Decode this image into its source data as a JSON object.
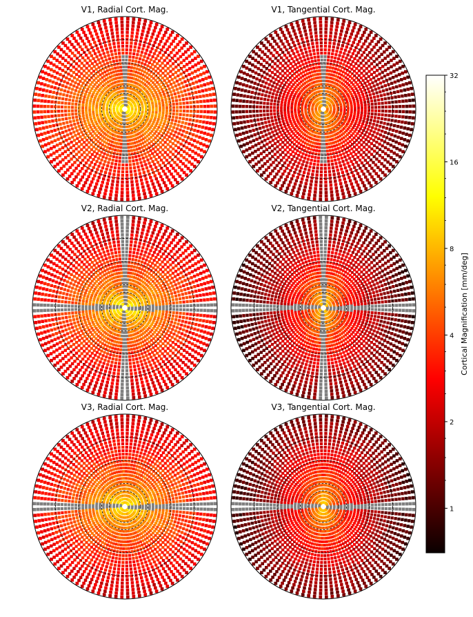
{
  "figure": {
    "panel_titles": [
      "V1, Radial Cort. Mag.",
      "V1, Tangential Cort. Mag.",
      "V2, Radial Cort. Mag.",
      "V2, Tangential Cort. Mag.",
      "V3, Radial Cort. Mag.",
      "V3, Tangential Cort. Mag."
    ],
    "colorbar_label": "Cortical Magnification [mm/deg]"
  },
  "chart_data": {
    "type": "polar-heatmap",
    "grid": "dashed circular rings",
    "missing_value_color": "#808080",
    "colormap": "hot",
    "colorbar": {
      "label": "Cortical Magnification [mm/deg]",
      "scale": "log2",
      "range": [
        0.7,
        32
      ],
      "ticks": [
        1,
        2,
        4,
        8,
        16,
        32
      ],
      "tick_labels": [
        "1",
        "2",
        "4",
        "8",
        "16",
        "32"
      ]
    },
    "panels": [
      {
        "area": "V1",
        "measure": "Radial",
        "title": "V1, Radial Cort. Mag.",
        "center_peak": 12,
        "periphery": 2.3,
        "gap": "vertical-thin"
      },
      {
        "area": "V1",
        "measure": "Tangential",
        "title": "V1, Tangential Cort. Mag.",
        "center_peak": 10,
        "periphery": 1.2,
        "gap": "vertical-thin"
      },
      {
        "area": "V2",
        "measure": "Radial",
        "title": "V2, Radial Cort. Mag.",
        "center_peak": 14,
        "periphery": 2.0,
        "gap": "cross"
      },
      {
        "area": "V2",
        "measure": "Tangential",
        "title": "V2, Tangential Cort. Mag.",
        "center_peak": 12,
        "periphery": 1.0,
        "gap": "cross"
      },
      {
        "area": "V3",
        "measure": "Radial",
        "title": "V3, Radial Cort. Mag.",
        "center_peak": 13,
        "periphery": 2.0,
        "gap": "horizontal"
      },
      {
        "area": "V3",
        "measure": "Tangential",
        "title": "V3, Tangential Cort. Mag.",
        "center_peak": 11,
        "periphery": 1.0,
        "gap": "horizontal"
      }
    ]
  }
}
